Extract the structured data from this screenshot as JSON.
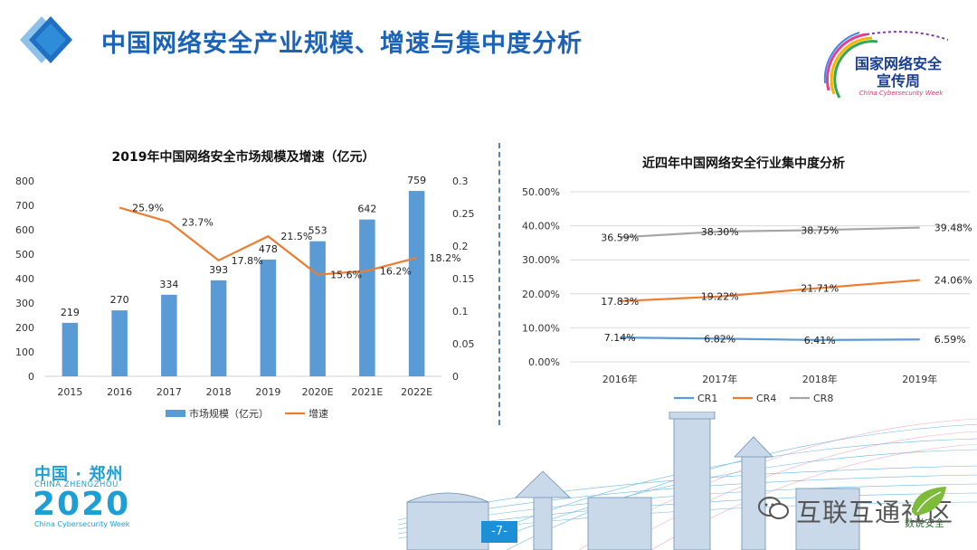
{
  "slide": {
    "title": "中国网络安全产业规模、增速与集中度分析",
    "page_number": "-7-"
  },
  "header_logo": {
    "title_line1": "国家网络安全",
    "title_line2": "宣传周",
    "subtitle": "China Cybersecurity Week"
  },
  "footer_logo": {
    "line1": "中国 · 郑州",
    "line2": "CHINA ZHENGZHOU",
    "line3": "2020",
    "line4": "China Cybersecurity Week"
  },
  "watermark": {
    "text": "互联互通社区",
    "logo_text": "数说安全"
  },
  "colors": {
    "accent": "#1d63b5",
    "bar": "#5b9bd5",
    "growth_line": "#ed7d31",
    "cr1": "#5b9bd5",
    "cr4": "#ed7d31",
    "cr8": "#a5a5a5",
    "divider": "#5b82b8"
  },
  "chart_data": [
    {
      "type": "bar+line",
      "title": "2019年中国网络安全市场规模及增速（亿元）",
      "categories": [
        "2015",
        "2016",
        "2017",
        "2018",
        "2019",
        "2020E",
        "2021E",
        "2022E"
      ],
      "series": [
        {
          "name": "市场规模（亿元）",
          "type": "bar",
          "axis": "left",
          "values": [
            219,
            270,
            334,
            393,
            478,
            553,
            642,
            759
          ],
          "labels": [
            "219",
            "270",
            "334",
            "393",
            "478",
            "553",
            "642",
            "759"
          ]
        },
        {
          "name": "增速",
          "type": "line",
          "axis": "right",
          "values": [
            null,
            0.259,
            0.237,
            0.178,
            0.215,
            0.156,
            0.162,
            0.182
          ],
          "labels": [
            "",
            "25.9%",
            "23.7%",
            "17.8%",
            "21.5%",
            "15.6%",
            "16.2%",
            "18.2%"
          ]
        }
      ],
      "ylim_left": [
        0,
        800
      ],
      "yticks_left": [
        "0",
        "100",
        "200",
        "300",
        "400",
        "500",
        "600",
        "700",
        "800"
      ],
      "ylim_right": [
        0,
        0.3
      ],
      "yticks_right": [
        "0",
        "0.05",
        "0.1",
        "0.15",
        "0.2",
        "0.25",
        "0.3"
      ],
      "legend": [
        "市场规模（亿元）",
        "增速"
      ],
      "legend_position": "bottom"
    },
    {
      "type": "line",
      "title": "近四年中国网络安全行业集中度分析",
      "categories": [
        "2016年",
        "2017年",
        "2018年",
        "2019年"
      ],
      "series": [
        {
          "name": "CR1",
          "values": [
            7.14,
            6.82,
            6.41,
            6.59
          ],
          "labels": [
            "7.14%",
            "6.82%",
            "6.41%",
            "6.59%"
          ]
        },
        {
          "name": "CR4",
          "values": [
            17.83,
            19.22,
            21.71,
            24.06
          ],
          "labels": [
            "17.83%",
            "19.22%",
            "21.71%",
            "24.06%"
          ]
        },
        {
          "name": "CR8",
          "values": [
            36.59,
            38.3,
            38.75,
            39.48
          ],
          "labels": [
            "36.59%",
            "38.30%",
            "38.75%",
            "39.48%"
          ]
        }
      ],
      "ylim": [
        0,
        50
      ],
      "yticks": [
        "0.00%",
        "10.00%",
        "20.00%",
        "30.00%",
        "40.00%",
        "50.00%"
      ],
      "grid": true,
      "legend": [
        "CR1",
        "CR4",
        "CR8"
      ],
      "legend_position": "bottom"
    }
  ]
}
